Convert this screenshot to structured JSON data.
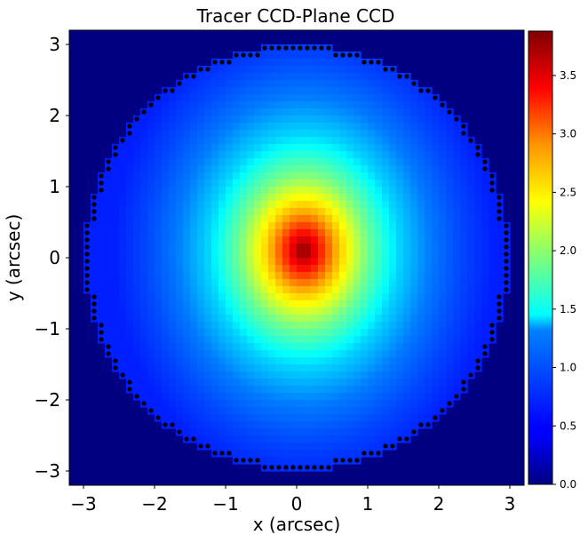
{
  "chart_data": {
    "type": "heatmap",
    "title": "Tracer CCD-Plane CCD",
    "xlabel": "x (arcsec)",
    "ylabel": "y (arcsec)",
    "xlim": [
      -3.2,
      3.2
    ],
    "ylim": [
      -3.2,
      3.2
    ],
    "x_ticks": [
      -3,
      -2,
      -1,
      0,
      1,
      2,
      3
    ],
    "x_tick_labels": [
      "−3",
      "−2",
      "−1",
      "0",
      "1",
      "2",
      "3"
    ],
    "y_ticks": [
      -3,
      -2,
      -1,
      0,
      1,
      2,
      3
    ],
    "y_tick_labels": [
      "−3",
      "−2",
      "−1",
      "0",
      "1",
      "2",
      "3"
    ],
    "colormap": "jet",
    "colorbar": {
      "range": [
        0.0,
        3.88
      ],
      "ticks": [
        0.0,
        0.5,
        1.0,
        1.5,
        2.0,
        2.5,
        3.0,
        3.5
      ],
      "tick_labels": [
        "0.0",
        "0.5",
        "1.0",
        "1.5",
        "2.0",
        "2.5",
        "3.0",
        "3.5"
      ]
    },
    "pixel_scale": 0.1,
    "mask_radius": 3.0,
    "background_value": 0.0,
    "peak": {
      "x": 0.1,
      "y": 0.1,
      "value": 3.88
    },
    "profile_radius_samples": [
      0.0,
      0.5,
      1.0,
      1.5,
      2.0,
      2.5,
      3.0
    ],
    "profile_value_samples": [
      3.88,
      2.75,
      1.9,
      1.3,
      0.95,
      0.75,
      0.6
    ],
    "mask_border_color": "#000000"
  }
}
